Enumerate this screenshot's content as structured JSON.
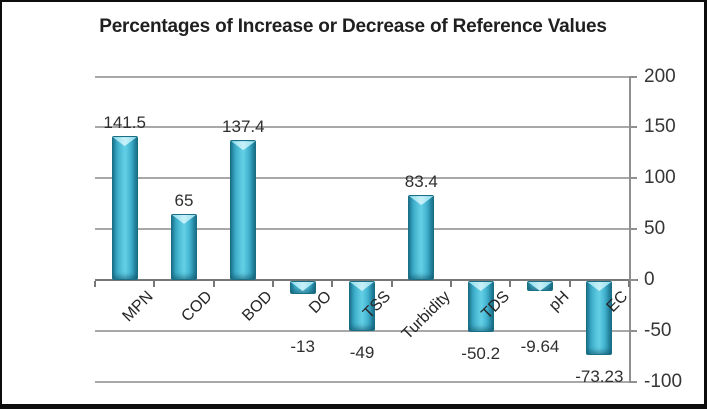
{
  "chart_data": {
    "type": "bar",
    "title": "Percentages of Increase or Decrease of Reference Values",
    "categories": [
      "MPN",
      "COD",
      "BOD",
      "DO",
      "TSS",
      "Turbidity",
      "TDS",
      "pH",
      "EC"
    ],
    "values": [
      141.5,
      65,
      137.4,
      -13,
      -49,
      83.4,
      -50.2,
      -9.64,
      -73.23
    ],
    "value_labels": [
      "141.5",
      "65",
      "137.4",
      "-13",
      "-49",
      "83.4",
      "-50.2",
      "-9.64",
      "-73.23"
    ],
    "xlabel": "",
    "ylabel": "",
    "ylim": [
      -100,
      200
    ],
    "yticks": [
      200,
      150,
      100,
      50,
      0,
      -50,
      -100
    ],
    "ytick_labels": [
      "200",
      "150",
      "100",
      "50",
      "0",
      "-50",
      "-100"
    ],
    "grid": true,
    "legend": "none",
    "value_axis_side": "right",
    "colors": {
      "bar_fill": "#45B8D5",
      "bar_edge": "#1B6F85",
      "bar_highlight": "#C8F1F9",
      "gridline": "#A8A8A8",
      "axis_line": "#777777",
      "label_text": "#2F2F2F",
      "title_text": "#1F1F1F",
      "background": "#FFFFFF",
      "border": "#0D0D0D"
    }
  }
}
